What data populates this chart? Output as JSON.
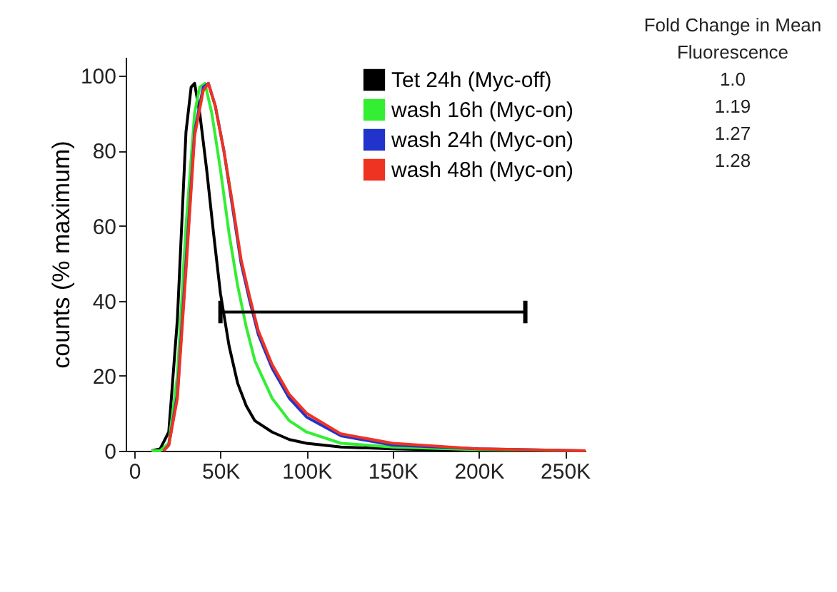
{
  "chart_data": {
    "type": "line",
    "ylabel": "counts (% maximum)",
    "xlim": [
      -5000,
      262000
    ],
    "ylim": [
      0,
      105
    ],
    "xticks": [
      {
        "value": 0,
        "label": "0"
      },
      {
        "value": 50000,
        "label": "50K"
      },
      {
        "value": 100000,
        "label": "100K"
      },
      {
        "value": 150000,
        "label": "150K"
      },
      {
        "value": 200000,
        "label": "200K"
      },
      {
        "value": 250000,
        "label": "250K"
      }
    ],
    "yticks": [
      0,
      20,
      40,
      60,
      80,
      100
    ],
    "grid": false,
    "legend": "top right",
    "marker": "none",
    "line_style": "solid",
    "annotations": [
      "Fold Change in Mean Fluorescence",
      "1.0",
      "1.19",
      "1.27",
      "1.28"
    ],
    "series": [
      {
        "name": "Tet 24h (Myc-off)",
        "color": "#000000",
        "x": [
          10000,
          15000,
          20000,
          25000,
          30000,
          33000,
          35000,
          38000,
          42000,
          46000,
          50000,
          55000,
          60000,
          65000,
          70000,
          80000,
          90000,
          100000,
          120000,
          150000,
          200000,
          262000
        ],
        "values": [
          0,
          0.5,
          5,
          35,
          85,
          97,
          98,
          90,
          75,
          58,
          42,
          28,
          18,
          12,
          8,
          5,
          3,
          2,
          1,
          0.5,
          0,
          0
        ]
      },
      {
        "name": "wash 16h (Myc-on)",
        "color": "#33ee33",
        "x": [
          10000,
          15000,
          20000,
          25000,
          30000,
          35000,
          38000,
          41000,
          45000,
          50000,
          55000,
          60000,
          65000,
          70000,
          80000,
          90000,
          100000,
          120000,
          150000,
          200000,
          262000
        ],
        "values": [
          0,
          0,
          2,
          20,
          60,
          90,
          97,
          98,
          90,
          75,
          58,
          44,
          33,
          24,
          14,
          8,
          5,
          2,
          1,
          0.3,
          0
        ]
      },
      {
        "name": "wash 24h (Myc-on)",
        "color": "#2233cc",
        "x": [
          17000,
          20000,
          25000,
          30000,
          35000,
          40000,
          43000,
          47000,
          52000,
          57000,
          62000,
          67000,
          72000,
          80000,
          90000,
          100000,
          120000,
          150000,
          200000,
          262000
        ],
        "values": [
          0,
          1.5,
          15,
          50,
          85,
          97,
          98,
          92,
          80,
          65,
          50,
          40,
          31,
          22,
          14,
          9,
          4,
          1.5,
          0.5,
          0
        ]
      },
      {
        "name": "wash 48h (Myc-on)",
        "color": "#ee3322",
        "x": [
          17000,
          20000,
          25000,
          30000,
          35000,
          40000,
          43000,
          47000,
          52000,
          57000,
          62000,
          67000,
          72000,
          80000,
          90000,
          100000,
          120000,
          150000,
          200000,
          262000
        ],
        "values": [
          0,
          1.5,
          14,
          48,
          84,
          96,
          98,
          92,
          80,
          66,
          51,
          41,
          32,
          23,
          15,
          10,
          4.5,
          2,
          0.5,
          0
        ]
      },
      {
        "type": "line",
        "color": "#000000",
        "x": [
          50000,
          227000
        ],
        "values": [
          37,
          37
        ],
        "errors": [
          3,
          3
        ]
      }
    ]
  }
}
